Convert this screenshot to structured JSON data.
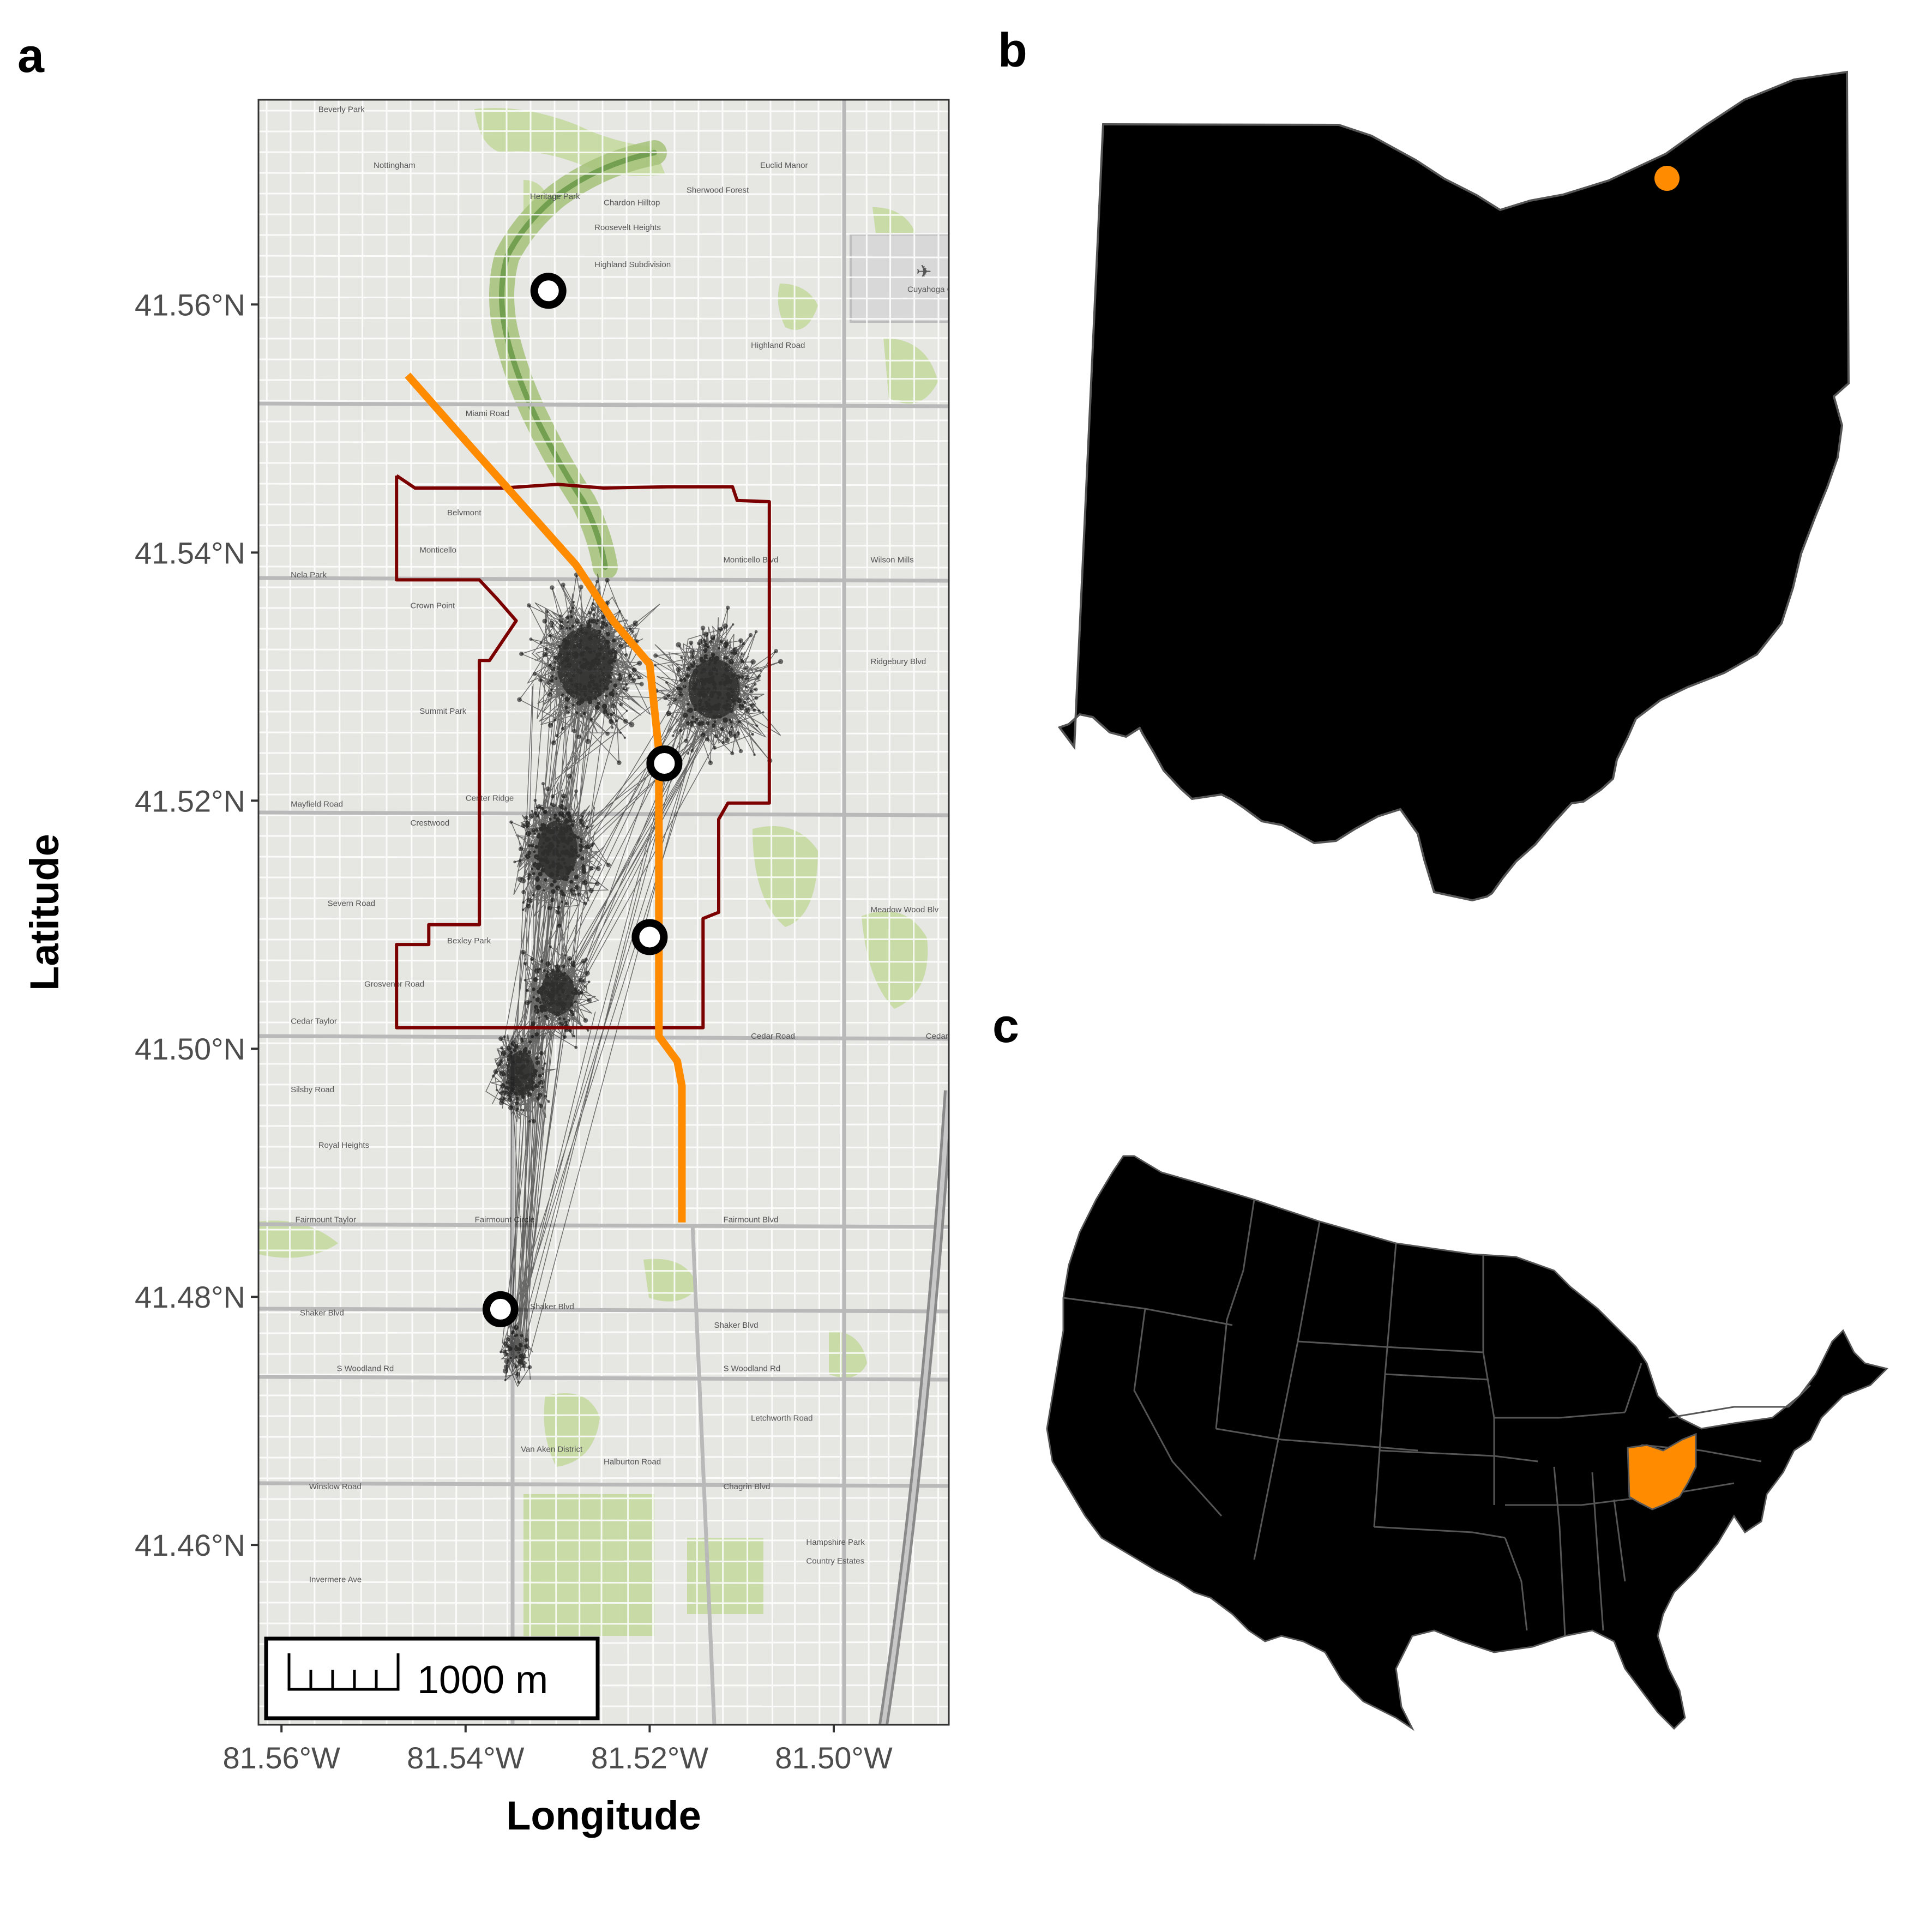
{
  "panels": {
    "a": {
      "letter": "a",
      "axes": {
        "xlabel": "Longitude",
        "ylabel": "Latitude",
        "xlim": [
          -81.5625,
          -81.4875
        ],
        "ylim": [
          41.4455,
          41.5765
        ],
        "x_ticks": [
          {
            "value": -81.56,
            "label": "81.56°W"
          },
          {
            "value": -81.54,
            "label": "81.54°W"
          },
          {
            "value": -81.52,
            "label": "81.52°W"
          },
          {
            "value": -81.5,
            "label": "81.50°W"
          }
        ],
        "y_ticks": [
          {
            "value": 41.46,
            "label": "41.46°N"
          },
          {
            "value": 41.48,
            "label": "41.48°N"
          },
          {
            "value": 41.5,
            "label": "41.50°N"
          },
          {
            "value": 41.52,
            "label": "41.52°N"
          },
          {
            "value": 41.54,
            "label": "41.54°N"
          },
          {
            "value": 41.56,
            "label": "41.56°N"
          }
        ]
      },
      "scale_bar": {
        "label": "1000 m"
      },
      "colors": {
        "route": "#ff8c00",
        "boundary": "#7b0000",
        "tracks": "#000000",
        "stations": "#ffffff"
      },
      "stations": [
        {
          "lon": -81.531,
          "lat": 41.5611
        },
        {
          "lon": -81.5184,
          "lat": 41.523
        },
        {
          "lon": -81.52,
          "lat": 41.509
        },
        {
          "lon": -81.5362,
          "lat": 41.479
        }
      ],
      "route": [
        [
          -81.5463,
          41.5543
        ],
        [
          -81.54,
          41.549
        ],
        [
          -81.534,
          41.544
        ],
        [
          -81.528,
          41.539
        ],
        [
          -81.524,
          41.5345
        ],
        [
          -81.52,
          41.531
        ],
        [
          -81.519,
          41.524
        ],
        [
          -81.519,
          41.517
        ],
        [
          -81.519,
          41.51
        ],
        [
          -81.519,
          41.501
        ],
        [
          -81.517,
          41.499
        ],
        [
          -81.5165,
          41.497
        ],
        [
          -81.5165,
          41.486
        ]
      ],
      "boundary": [
        [
          -81.5475,
          41.5462
        ],
        [
          -81.5455,
          41.5452
        ],
        [
          -81.536,
          41.5452
        ],
        [
          -81.53,
          41.5455
        ],
        [
          -81.525,
          41.5452
        ],
        [
          -81.518,
          41.5453
        ],
        [
          -81.511,
          41.5453
        ],
        [
          -81.5105,
          41.5442
        ],
        [
          -81.507,
          41.5441
        ],
        [
          -81.507,
          41.5198
        ],
        [
          -81.5115,
          41.5198
        ],
        [
          -81.5125,
          41.5185
        ],
        [
          -81.5125,
          41.511
        ],
        [
          -81.5142,
          41.5105
        ],
        [
          -81.5142,
          41.5017
        ],
        [
          -81.5475,
          41.5017
        ],
        [
          -81.5475,
          41.5084
        ],
        [
          -81.544,
          41.5084
        ],
        [
          -81.544,
          41.51
        ],
        [
          -81.5385,
          41.51
        ],
        [
          -81.5385,
          41.5313
        ],
        [
          -81.5374,
          41.5313
        ],
        [
          -81.5345,
          41.5345
        ],
        [
          -81.5365,
          41.5362
        ],
        [
          -81.5385,
          41.5378
        ],
        [
          -81.5475,
          41.5378
        ],
        [
          -81.5475,
          41.5462
        ]
      ],
      "track_clusters": [
        {
          "lon": -81.527,
          "lat": 41.531,
          "rlon": 0.005,
          "rlat": 0.005
        },
        {
          "lon": -81.513,
          "lat": 41.529,
          "rlon": 0.0045,
          "rlat": 0.004
        },
        {
          "lon": -81.53,
          "lat": 41.516,
          "rlon": 0.0035,
          "rlat": 0.004
        },
        {
          "lon": -81.53,
          "lat": 41.5045,
          "rlon": 0.003,
          "rlat": 0.003
        },
        {
          "lon": -81.534,
          "lat": 41.498,
          "rlon": 0.0025,
          "rlat": 0.003
        },
        {
          "lon": -81.5345,
          "lat": 41.4755,
          "rlon": 0.0015,
          "rlat": 0.002
        }
      ],
      "map_labels": [
        {
          "lon": -81.556,
          "lat": 41.5755,
          "text": "Beverly Park"
        },
        {
          "lon": -81.55,
          "lat": 41.571,
          "text": "Nottingham"
        },
        {
          "lon": -81.533,
          "lat": 41.5685,
          "text": "Heritage Park"
        },
        {
          "lon": -81.525,
          "lat": 41.568,
          "text": "Chardon Hilltop"
        },
        {
          "lon": -81.516,
          "lat": 41.569,
          "text": "Sherwood Forest"
        },
        {
          "lon": -81.508,
          "lat": 41.571,
          "text": "Euclid Manor"
        },
        {
          "lon": -81.526,
          "lat": 41.566,
          "text": "Roosevelt Heights"
        },
        {
          "lon": -81.526,
          "lat": 41.563,
          "text": "Highland Subdivision"
        },
        {
          "lon": -81.492,
          "lat": 41.561,
          "text": "Cuyahoga County A"
        },
        {
          "lon": -81.509,
          "lat": 41.5565,
          "text": "Highland Road"
        },
        {
          "lon": -81.54,
          "lat": 41.551,
          "text": "Miami Road"
        },
        {
          "lon": -81.542,
          "lat": 41.543,
          "text": "Belvmont"
        },
        {
          "lon": -81.545,
          "lat": 41.54,
          "text": "Monticello"
        },
        {
          "lon": -81.512,
          "lat": 41.5392,
          "text": "Monticello Blvd"
        },
        {
          "lon": -81.496,
          "lat": 41.5392,
          "text": "Wilson Mills"
        },
        {
          "lon": -81.559,
          "lat": 41.538,
          "text": "Nela Park"
        },
        {
          "lon": -81.546,
          "lat": 41.5355,
          "text": "Crown Point"
        },
        {
          "lon": -81.496,
          "lat": 41.531,
          "text": "Ridgebury Blvd"
        },
        {
          "lon": -81.545,
          "lat": 41.527,
          "text": "Summit Park"
        },
        {
          "lon": -81.559,
          "lat": 41.5195,
          "text": "Mayfield Road"
        },
        {
          "lon": -81.54,
          "lat": 41.52,
          "text": "Center Ridge"
        },
        {
          "lon": -81.546,
          "lat": 41.518,
          "text": "Crestwood"
        },
        {
          "lon": -81.555,
          "lat": 41.5115,
          "text": "Severn Road"
        },
        {
          "lon": -81.542,
          "lat": 41.5085,
          "text": "Bexley Park"
        },
        {
          "lon": -81.496,
          "lat": 41.511,
          "text": "Meadow Wood Blv"
        },
        {
          "lon": -81.551,
          "lat": 41.505,
          "text": "Grosvenor Road"
        },
        {
          "lon": -81.509,
          "lat": 41.5008,
          "text": "Cedar Road"
        },
        {
          "lon": -81.559,
          "lat": 41.502,
          "text": "Cedar Taylor"
        },
        {
          "lon": -81.49,
          "lat": 41.5008,
          "text": "Cedar"
        },
        {
          "lon": -81.559,
          "lat": 41.4965,
          "text": "Silsby Road"
        },
        {
          "lon": -81.556,
          "lat": 41.492,
          "text": "Royal Heights"
        },
        {
          "lon": -81.5585,
          "lat": 41.486,
          "text": "Fairmount Taylor"
        },
        {
          "lon": -81.539,
          "lat": 41.486,
          "text": "Fairmount Circle"
        },
        {
          "lon": -81.512,
          "lat": 41.486,
          "text": "Fairmount Blvd"
        },
        {
          "lon": -81.558,
          "lat": 41.4785,
          "text": "Shaker Blvd"
        },
        {
          "lon": -81.533,
          "lat": 41.479,
          "text": "Shaker Blvd"
        },
        {
          "lon": -81.513,
          "lat": 41.4775,
          "text": "Shaker Blvd"
        },
        {
          "lon": -81.554,
          "lat": 41.474,
          "text": "S Woodland Rd"
        },
        {
          "lon": -81.512,
          "lat": 41.474,
          "text": "S Woodland Rd"
        },
        {
          "lon": -81.509,
          "lat": 41.47,
          "text": "Letchworth Road"
        },
        {
          "lon": -81.534,
          "lat": 41.4675,
          "text": "Van Aken District"
        },
        {
          "lon": -81.525,
          "lat": 41.4665,
          "text": "Halburton Road"
        },
        {
          "lon": -81.557,
          "lat": 41.4645,
          "text": "Winslow Road"
        },
        {
          "lon": -81.512,
          "lat": 41.4645,
          "text": "Chagrin Blvd"
        },
        {
          "lon": -81.503,
          "lat": 41.46,
          "text": "Hampshire Park"
        },
        {
          "lon": -81.503,
          "lat": 41.4585,
          "text": "Country Estates"
        },
        {
          "lon": -81.557,
          "lat": 41.457,
          "text": "Invermere Ave"
        }
      ]
    },
    "b": {
      "letter": "b",
      "colors": {
        "state_fill": "#000000",
        "state_edge": "#555555",
        "marker": "#ff8c00"
      },
      "site_marker": {
        "lon": -81.52,
        "lat": 41.52
      }
    },
    "c": {
      "letter": "c",
      "colors": {
        "country_fill": "#000000",
        "state_edge": "#555555",
        "highlight": "#ff8c00"
      },
      "highlighted_state": "Ohio"
    }
  }
}
